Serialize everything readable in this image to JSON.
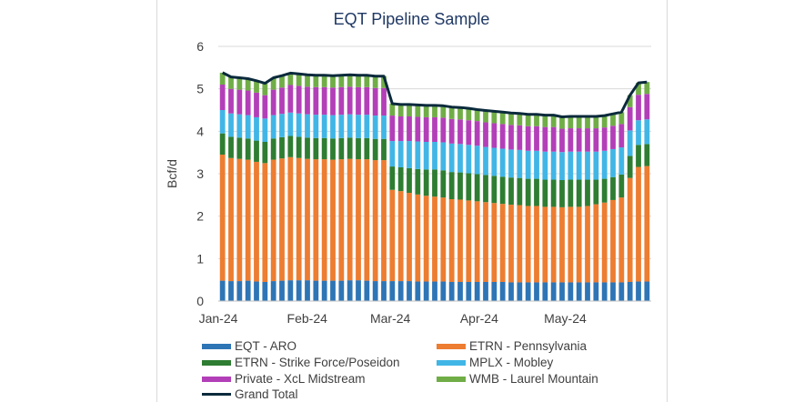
{
  "chart_data": {
    "type": "bar",
    "stacked": true,
    "title": "EQT Pipeline Sample",
    "xlabel": "",
    "ylabel": "Bcf/d",
    "ylim": [
      0,
      6
    ],
    "yticks": [
      "0",
      "1",
      "2",
      "3",
      "4",
      "5",
      "6"
    ],
    "x_tick_labels": [
      "Jan-24",
      "Feb-24",
      "Mar-24",
      "Apr-24",
      "May-24"
    ],
    "x_range": [
      "2024-01-01",
      "2024-05-31"
    ],
    "grid": true,
    "legend_position": "bottom",
    "x": [
      "2024-01-01",
      "2024-01-04",
      "2024-01-07",
      "2024-01-10",
      "2024-01-13",
      "2024-01-16",
      "2024-01-19",
      "2024-01-22",
      "2024-01-25",
      "2024-01-28",
      "2024-01-31",
      "2024-02-03",
      "2024-02-06",
      "2024-02-09",
      "2024-02-12",
      "2024-02-15",
      "2024-02-18",
      "2024-02-21",
      "2024-02-24",
      "2024-02-27",
      "2024-03-01",
      "2024-03-04",
      "2024-03-07",
      "2024-03-10",
      "2024-03-13",
      "2024-03-16",
      "2024-03-19",
      "2024-03-22",
      "2024-03-25",
      "2024-03-28",
      "2024-03-31",
      "2024-04-03",
      "2024-04-06",
      "2024-04-09",
      "2024-04-12",
      "2024-04-15",
      "2024-04-18",
      "2024-04-21",
      "2024-04-24",
      "2024-04-27",
      "2024-04-30",
      "2024-05-03",
      "2024-05-06",
      "2024-05-09",
      "2024-05-12",
      "2024-05-15",
      "2024-05-18",
      "2024-05-21",
      "2024-05-24",
      "2024-05-27",
      "2024-05-30"
    ],
    "series": [
      {
        "name": "EQT - ARO",
        "color": "#2e75b6",
        "values": [
          0.48,
          0.47,
          0.47,
          0.48,
          0.46,
          0.45,
          0.47,
          0.48,
          0.49,
          0.49,
          0.49,
          0.48,
          0.48,
          0.48,
          0.48,
          0.49,
          0.49,
          0.48,
          0.47,
          0.47,
          0.47,
          0.47,
          0.47,
          0.46,
          0.46,
          0.46,
          0.46,
          0.45,
          0.45,
          0.45,
          0.45,
          0.45,
          0.45,
          0.45,
          0.44,
          0.44,
          0.44,
          0.44,
          0.44,
          0.44,
          0.44,
          0.44,
          0.44,
          0.44,
          0.44,
          0.44,
          0.44,
          0.44,
          0.45,
          0.46,
          0.46
        ]
      },
      {
        "name": "ETRN - Pennsylvania",
        "color": "#ed7d31",
        "values": [
          2.97,
          2.9,
          2.88,
          2.85,
          2.82,
          2.8,
          2.86,
          2.88,
          2.9,
          2.88,
          2.86,
          2.86,
          2.86,
          2.85,
          2.86,
          2.86,
          2.85,
          2.86,
          2.85,
          2.85,
          2.15,
          2.12,
          2.08,
          2.05,
          2.02,
          2.0,
          1.98,
          1.95,
          1.94,
          1.92,
          1.9,
          1.88,
          1.86,
          1.84,
          1.83,
          1.82,
          1.8,
          1.8,
          1.78,
          1.78,
          1.77,
          1.78,
          1.78,
          1.8,
          1.84,
          1.88,
          1.94,
          2.0,
          2.45,
          2.7,
          2.72
        ]
      },
      {
        "name": "ETRN - Strike Force/Poseidon",
        "color": "#2e7d32",
        "values": [
          0.5,
          0.5,
          0.5,
          0.5,
          0.5,
          0.5,
          0.5,
          0.5,
          0.5,
          0.5,
          0.5,
          0.5,
          0.5,
          0.5,
          0.5,
          0.5,
          0.5,
          0.5,
          0.5,
          0.5,
          0.55,
          0.56,
          0.58,
          0.6,
          0.62,
          0.64,
          0.64,
          0.64,
          0.64,
          0.64,
          0.64,
          0.64,
          0.64,
          0.64,
          0.64,
          0.64,
          0.64,
          0.64,
          0.64,
          0.64,
          0.64,
          0.64,
          0.64,
          0.62,
          0.58,
          0.56,
          0.54,
          0.54,
          0.52,
          0.52,
          0.52
        ]
      },
      {
        "name": "MPLX - Mobley",
        "color": "#41b6e6",
        "values": [
          0.55,
          0.55,
          0.55,
          0.55,
          0.55,
          0.55,
          0.55,
          0.55,
          0.55,
          0.55,
          0.55,
          0.55,
          0.55,
          0.55,
          0.55,
          0.55,
          0.55,
          0.55,
          0.55,
          0.55,
          0.6,
          0.62,
          0.64,
          0.65,
          0.65,
          0.65,
          0.66,
          0.67,
          0.67,
          0.67,
          0.67,
          0.66,
          0.66,
          0.66,
          0.66,
          0.66,
          0.66,
          0.66,
          0.66,
          0.66,
          0.66,
          0.66,
          0.66,
          0.66,
          0.66,
          0.66,
          0.66,
          0.64,
          0.6,
          0.58,
          0.58
        ]
      },
      {
        "name": "Private - XcL Midstream",
        "color": "#b33fb8",
        "values": [
          0.6,
          0.58,
          0.58,
          0.58,
          0.58,
          0.55,
          0.6,
          0.62,
          0.65,
          0.65,
          0.65,
          0.65,
          0.65,
          0.65,
          0.65,
          0.65,
          0.65,
          0.65,
          0.65,
          0.65,
          0.6,
          0.58,
          0.58,
          0.58,
          0.58,
          0.58,
          0.58,
          0.58,
          0.58,
          0.58,
          0.58,
          0.58,
          0.58,
          0.58,
          0.58,
          0.58,
          0.58,
          0.58,
          0.58,
          0.58,
          0.55,
          0.55,
          0.55,
          0.55,
          0.55,
          0.55,
          0.55,
          0.55,
          0.55,
          0.6,
          0.6
        ]
      },
      {
        "name": "WMB - Laurel Mountain",
        "color": "#70ad47",
        "values": [
          0.28,
          0.28,
          0.28,
          0.28,
          0.28,
          0.28,
          0.28,
          0.28,
          0.28,
          0.28,
          0.28,
          0.28,
          0.28,
          0.28,
          0.28,
          0.28,
          0.28,
          0.28,
          0.28,
          0.28,
          0.28,
          0.28,
          0.28,
          0.28,
          0.28,
          0.28,
          0.28,
          0.28,
          0.28,
          0.28,
          0.28,
          0.28,
          0.28,
          0.28,
          0.28,
          0.28,
          0.28,
          0.28,
          0.28,
          0.28,
          0.28,
          0.28,
          0.28,
          0.28,
          0.28,
          0.28,
          0.28,
          0.28,
          0.28,
          0.28,
          0.28
        ]
      }
    ],
    "line": {
      "name": "Grand Total",
      "color": "#0b2a3c",
      "values": [
        5.38,
        5.28,
        5.26,
        5.24,
        5.19,
        5.13,
        5.26,
        5.31,
        5.37,
        5.35,
        5.33,
        5.32,
        5.32,
        5.31,
        5.32,
        5.33,
        5.32,
        5.32,
        5.3,
        5.3,
        4.65,
        4.63,
        4.63,
        4.62,
        4.61,
        4.61,
        4.6,
        4.57,
        4.56,
        4.54,
        4.51,
        4.49,
        4.47,
        4.45,
        4.43,
        4.42,
        4.4,
        4.4,
        4.38,
        4.38,
        4.34,
        4.35,
        4.35,
        4.35,
        4.35,
        4.37,
        4.41,
        4.45,
        4.85,
        5.14,
        5.16
      ]
    }
  },
  "legend": {
    "items": [
      "EQT - ARO",
      "ETRN - Pennsylvania",
      "ETRN - Strike Force/Poseidon",
      "MPLX - Mobley",
      "Private - XcL Midstream",
      "WMB - Laurel Mountain",
      "Grand Total"
    ]
  }
}
